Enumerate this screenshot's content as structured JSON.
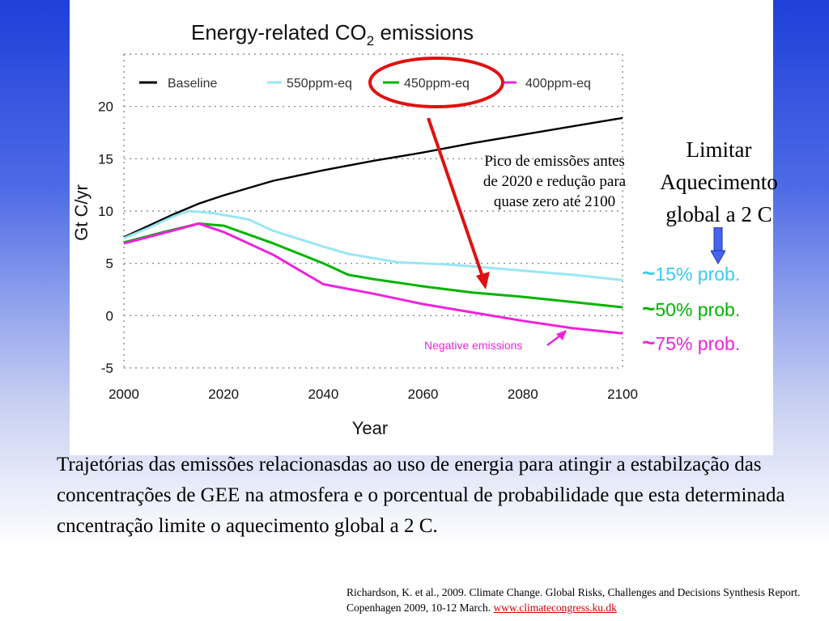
{
  "chart_data": {
    "type": "line",
    "title": "Energy-related CO",
    "title_sub": "2",
    "title_rest": " emissions",
    "xlabel": "Year",
    "ylabel": "Gt C/yr",
    "xlim": [
      2000,
      2100
    ],
    "ylim": [
      -5,
      25
    ],
    "x_ticks": [
      2000,
      2020,
      2040,
      2060,
      2080,
      2100
    ],
    "y_ticks": [
      -5,
      0,
      5,
      10,
      15,
      20
    ],
    "grid": "horizontal dotted",
    "legend_position": "top",
    "series": [
      {
        "name": "Baseline",
        "color": "#000000",
        "points": [
          [
            2000,
            7.5
          ],
          [
            2005,
            8.6
          ],
          [
            2010,
            9.7
          ],
          [
            2015,
            10.7
          ],
          [
            2020,
            11.5
          ],
          [
            2025,
            12.2
          ],
          [
            2030,
            12.9
          ],
          [
            2040,
            13.9
          ],
          [
            2050,
            14.8
          ],
          [
            2060,
            15.6
          ],
          [
            2070,
            16.5
          ],
          [
            2080,
            17.3
          ],
          [
            2090,
            18.1
          ],
          [
            2100,
            18.9
          ]
        ]
      },
      {
        "name": "550ppm-eq",
        "color": "#99e6f5",
        "points": [
          [
            2000,
            7.4
          ],
          [
            2005,
            8.4
          ],
          [
            2010,
            9.5
          ],
          [
            2013,
            10.0
          ],
          [
            2018,
            9.8
          ],
          [
            2025,
            9.2
          ],
          [
            2030,
            8.1
          ],
          [
            2040,
            6.6
          ],
          [
            2045,
            5.9
          ],
          [
            2050,
            5.5
          ],
          [
            2055,
            5.1
          ],
          [
            2060,
            5.0
          ],
          [
            2065,
            4.9
          ],
          [
            2070,
            4.7
          ],
          [
            2080,
            4.3
          ],
          [
            2090,
            3.9
          ],
          [
            2100,
            3.4
          ]
        ]
      },
      {
        "name": "450ppm-eq",
        "color": "#00b400",
        "points": [
          [
            2000,
            7.0
          ],
          [
            2008,
            8.0
          ],
          [
            2015,
            8.8
          ],
          [
            2020,
            8.6
          ],
          [
            2030,
            6.9
          ],
          [
            2040,
            5.0
          ],
          [
            2045,
            3.9
          ],
          [
            2050,
            3.5
          ],
          [
            2060,
            2.8
          ],
          [
            2070,
            2.2
          ],
          [
            2080,
            1.8
          ],
          [
            2090,
            1.3
          ],
          [
            2100,
            0.8
          ]
        ]
      },
      {
        "name": "400ppm-eq",
        "color": "#ee22dd",
        "points": [
          [
            2000,
            6.9
          ],
          [
            2008,
            7.9
          ],
          [
            2015,
            8.8
          ],
          [
            2020,
            8.0
          ],
          [
            2030,
            5.8
          ],
          [
            2040,
            3.0
          ],
          [
            2050,
            2.1
          ],
          [
            2060,
            1.1
          ],
          [
            2070,
            0.3
          ],
          [
            2080,
            -0.5
          ],
          [
            2090,
            -1.2
          ],
          [
            2100,
            -1.7
          ]
        ]
      }
    ],
    "annotations": [
      {
        "text": "Negative emissions",
        "color": "#ee22dd"
      }
    ]
  },
  "side_note": "Limitar Aquecimento global a 2 C",
  "peak_note": "Pico de emissões antes de 2020 e redução para quase zero até 2100",
  "probabilities": [
    {
      "tilde": "~",
      "label": "15% prob.",
      "color": "#33ccee"
    },
    {
      "tilde": "~",
      "label": "50% prob.",
      "color": "#00b400"
    },
    {
      "tilde": "~",
      "label": "75% prob.",
      "color": "#ee22dd"
    }
  ],
  "caption": "Trajetórias das emissões relacionasdas ao uso de energia para atingir a estabilzação das concentrações de GEE na atmosfera e o porcentual de probabilidade que esta determinada cncentração limite o aquecimento global a 2 C.",
  "reference": {
    "text": "Richardson, K. et al., 2009. Climate Change. Global Risks, Challenges and Decisions Synthesis Report. Copenhagen 2009, 10-12 March. ",
    "link": "www.climatecongress.ku.dk"
  },
  "colors": {
    "background_top": "#1f3fd9",
    "highlight": "#e01010",
    "arrow_blue": "#4466ee"
  }
}
